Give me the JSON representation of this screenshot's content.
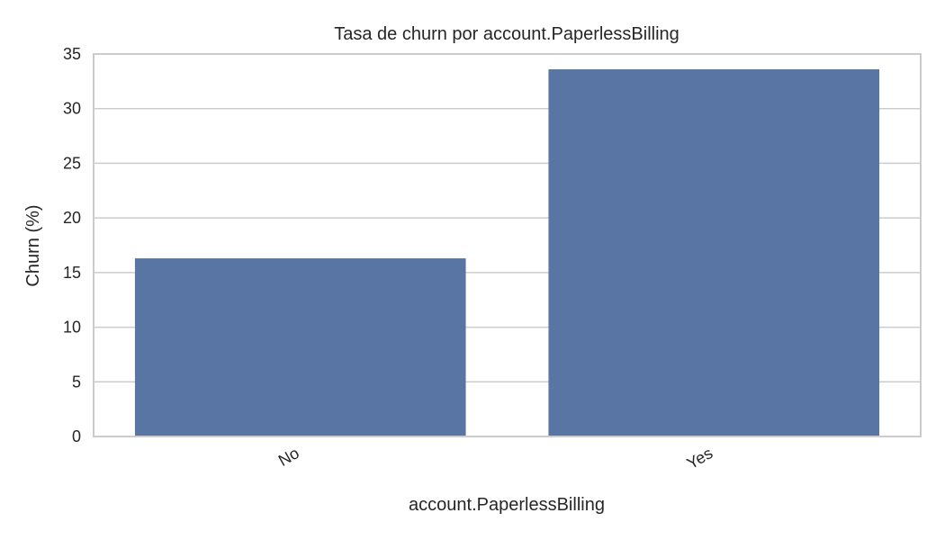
{
  "chart_data": {
    "type": "bar",
    "title": "Tasa de churn por account.PaperlessBilling",
    "xlabel": "account.PaperlessBilling",
    "ylabel": "Churn (%)",
    "categories": [
      "No",
      "Yes"
    ],
    "values": [
      16.3,
      33.6
    ],
    "ylim": [
      0,
      35
    ],
    "yticks": [
      0,
      5,
      10,
      15,
      20,
      25,
      30,
      35
    ],
    "grid": "horizontal",
    "colors": {
      "bar": "#5975a4",
      "grid": "#cccccc",
      "frame": "#cccccc",
      "text": "#262626"
    }
  }
}
